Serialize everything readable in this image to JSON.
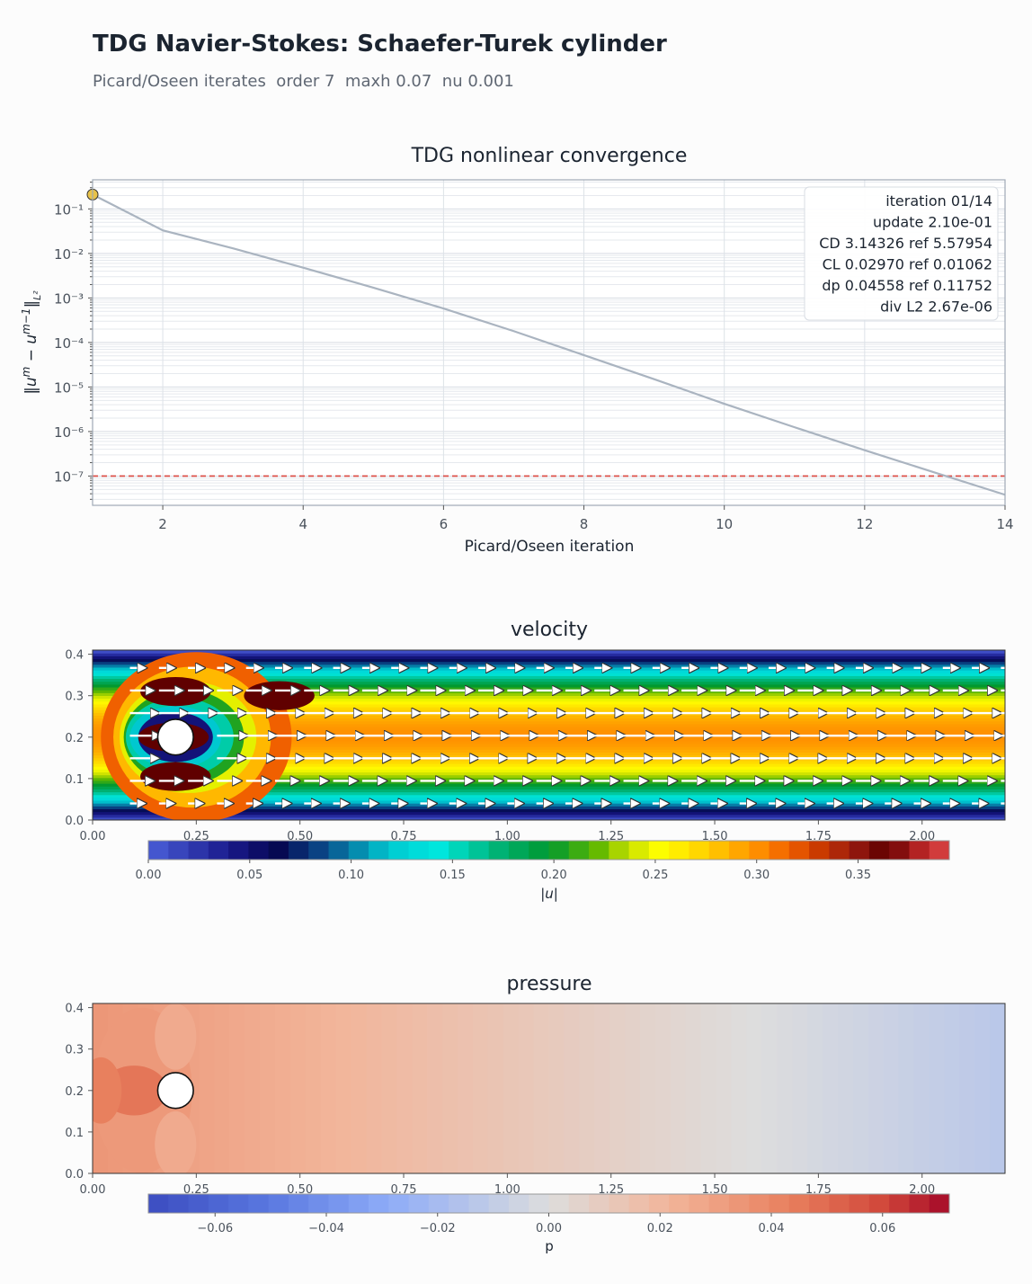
{
  "header": {
    "title": "TDG Navier-Stokes: Schaefer-Turek cylinder",
    "subtitle": "Picard/Oseen iterates  order 7  maxh 0.07  nu 0.001"
  },
  "chart_data": [
    {
      "type": "line",
      "title": "TDG nonlinear convergence",
      "xlabel": "Picard/Oseen iteration",
      "ylabel": "‖u^m − u^(m−1)‖_L²",
      "x_ticks": [
        "2",
        "4",
        "6",
        "8",
        "10",
        "12",
        "14"
      ],
      "y_ticks": [
        "10⁻¹",
        "10⁻²",
        "10⁻³",
        "10⁻⁴",
        "10⁻⁵",
        "10⁻⁶",
        "10⁻⁷"
      ],
      "xlim": [
        1,
        14
      ],
      "ylim": [
        2.2e-08,
        0.45
      ],
      "yscale": "log",
      "grid": true,
      "series": [
        {
          "x": [
            1,
            2,
            3,
            4,
            5,
            6,
            7,
            8,
            9,
            10,
            11,
            12,
            13,
            14
          ],
          "values": [
            0.21,
            0.033,
            0.013,
            0.0048,
            0.0017,
            0.00058,
            0.00018,
            5.2e-05,
            1.5e-05,
            4.2e-06,
            1.25e-06,
            3.8e-07,
            1.2e-07,
            3.8e-08
          ],
          "color": "#aab4c0"
        }
      ],
      "highlight_point": {
        "x": 1,
        "y": 0.21,
        "color": "#e8c24a"
      },
      "threshold": {
        "y": 1e-07,
        "color": "#d9463f",
        "style": "dashed"
      },
      "info_box": [
        "iteration 01/14",
        "update 2.10e-01",
        "CD 3.14326  ref 5.57954",
        "CL 0.02970  ref 0.01062",
        "dp 0.04558  ref 0.11752",
        "div L2 2.67e-06"
      ]
    },
    {
      "type": "heatmap",
      "title": "velocity",
      "x_ticks": [
        "0.00",
        "0.25",
        "0.50",
        "0.75",
        "1.00",
        "1.25",
        "1.50",
        "1.75",
        "2.00"
      ],
      "y_ticks": [
        "0.0",
        "0.1",
        "0.2",
        "0.3",
        "0.4"
      ],
      "xlim": [
        0,
        2.2
      ],
      "ylim": [
        0,
        0.41
      ],
      "cylinder": {
        "cx": 0.2,
        "cy": 0.2,
        "r": 0.05
      },
      "colorbar": {
        "label": "|u|",
        "ticks": [
          "0.00",
          "0.05",
          "0.10",
          "0.15",
          "0.20",
          "0.25",
          "0.30",
          "0.35"
        ],
        "range": [
          0,
          0.395
        ],
        "colormap": "jet-like (blue, cyan, green, yellow, orange, dark red)"
      },
      "quiver": {
        "color": "#ffffff",
        "outline": "#333333"
      }
    },
    {
      "type": "heatmap",
      "title": "pressure",
      "x_ticks": [
        "0.00",
        "0.25",
        "0.50",
        "0.75",
        "1.00",
        "1.25",
        "1.50",
        "1.75",
        "2.00"
      ],
      "y_ticks": [
        "0.0",
        "0.1",
        "0.2",
        "0.3",
        "0.4"
      ],
      "xlim": [
        0,
        2.2
      ],
      "ylim": [
        0,
        0.41
      ],
      "cylinder": {
        "cx": 0.2,
        "cy": 0.2,
        "r": 0.05
      },
      "colorbar": {
        "label": "p",
        "ticks": [
          "−0.06",
          "−0.04",
          "−0.02",
          "0.00",
          "0.02",
          "0.04",
          "0.06"
        ],
        "range": [
          -0.072,
          0.072
        ],
        "colormap": "coolwarm"
      }
    }
  ]
}
